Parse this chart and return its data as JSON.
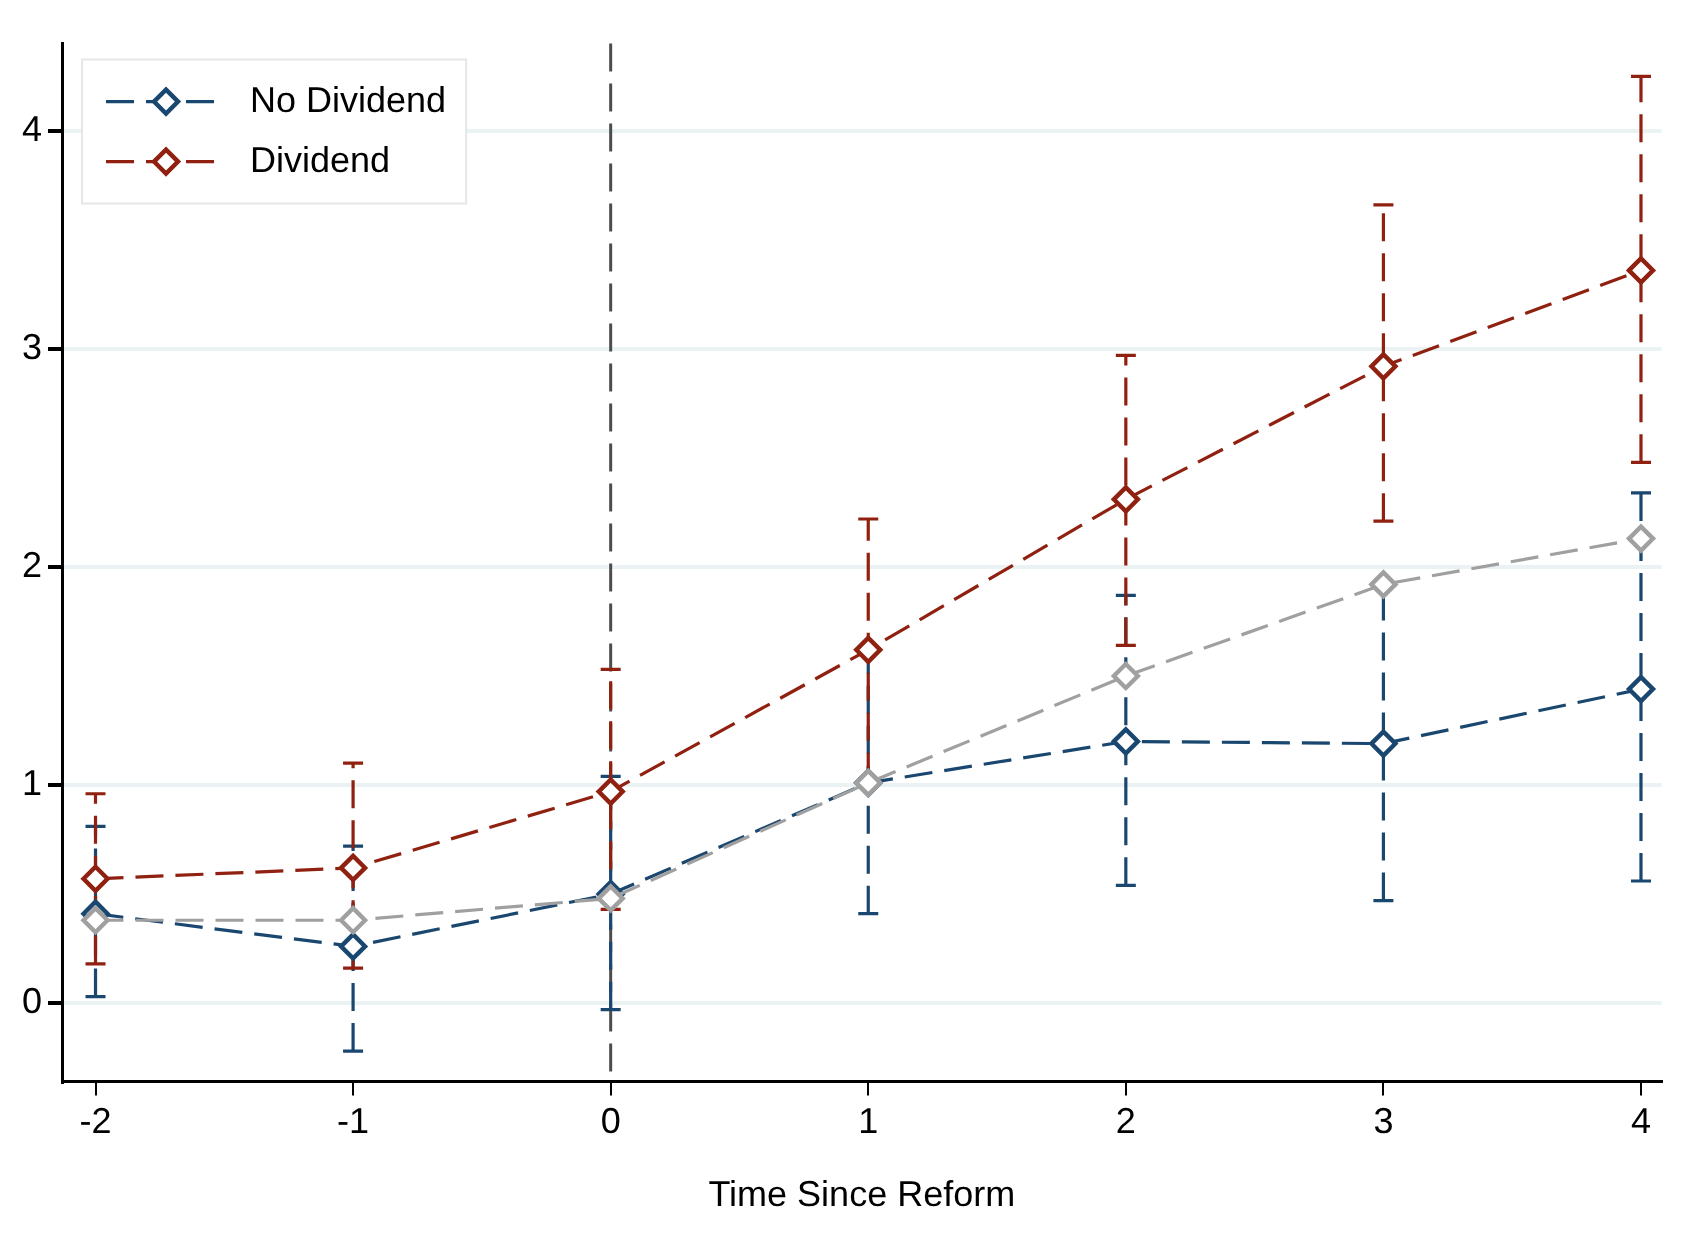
{
  "chart_data": {
    "type": "line",
    "xlabel": "Time Since Reform",
    "x": [
      -2,
      -1,
      0,
      1,
      2,
      3,
      4
    ],
    "series": [
      {
        "name": "No Dividend",
        "color": "#1a476f",
        "values": [
          0.41,
          0.26,
          0.5,
          1.01,
          1.2,
          1.19,
          1.44
        ],
        "errors": [
          [
            0.03,
            0.81
          ],
          [
            -0.22,
            0.72
          ],
          [
            -0.03,
            1.04
          ],
          [
            0.41,
            1.61
          ],
          [
            0.54,
            1.87
          ],
          [
            0.47,
            1.91
          ],
          [
            0.56,
            2.34
          ]
        ]
      },
      {
        "name": "Dividend",
        "color": "#90200f",
        "values": [
          0.57,
          0.62,
          0.97,
          1.62,
          2.31,
          2.92,
          3.36
        ],
        "errors": [
          [
            0.18,
            0.96
          ],
          [
            0.16,
            1.1
          ],
          [
            0.43,
            1.53
          ],
          [
            1.02,
            2.22
          ],
          [
            1.64,
            2.97
          ],
          [
            2.21,
            3.66
          ],
          [
            2.48,
            4.25
          ]
        ]
      },
      {
        "color": "#a0a0a0",
        "values": [
          0.38,
          0.38,
          0.48,
          1.01,
          1.5,
          1.92,
          2.13
        ]
      }
    ],
    "xlim": [
      -2.13,
      4.08
    ],
    "ylim": [
      -0.36,
      4.4
    ],
    "xticks": [
      -2,
      -1,
      0,
      1,
      2,
      3,
      4
    ],
    "yticks": [
      0,
      1,
      2,
      3,
      4
    ],
    "ref_lines": [
      {
        "axis": "x",
        "value": 0,
        "color": "#4d4d4d",
        "line_style": "dashed"
      }
    ],
    "grid": "y",
    "legend": "top left",
    "marker": "diamond",
    "line_style": "dashed"
  }
}
